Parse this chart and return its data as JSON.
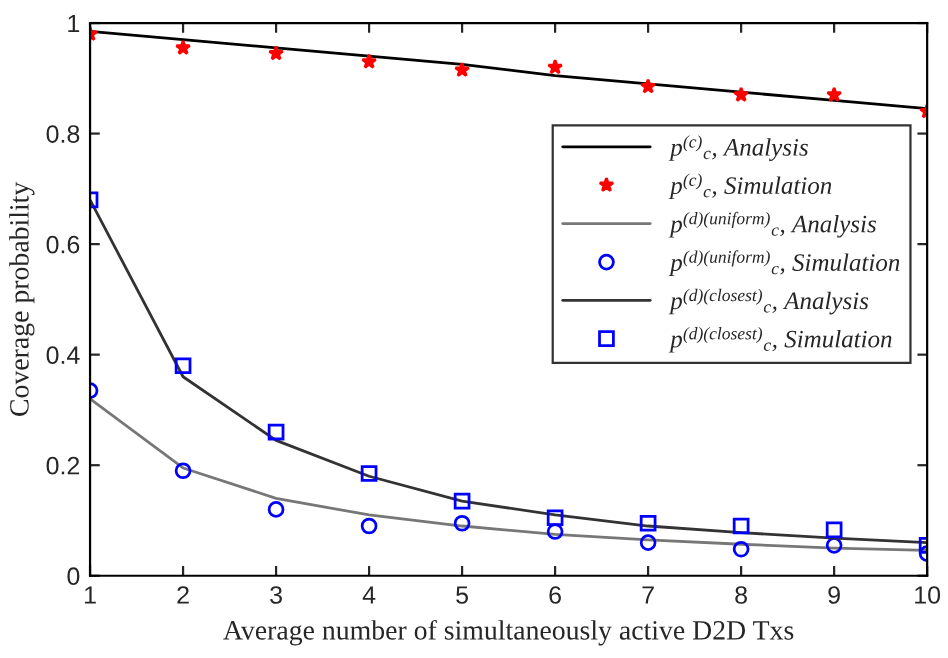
{
  "chart_data": {
    "type": "line",
    "xlabel": "Average number of simultaneously active D2D Txs",
    "ylabel": "Coverage probability",
    "x": [
      1,
      2,
      3,
      4,
      5,
      6,
      7,
      8,
      9,
      10
    ],
    "xlim": [
      1,
      10
    ],
    "xticks": [
      1,
      2,
      3,
      4,
      5,
      6,
      7,
      8,
      9,
      10
    ],
    "ylim": [
      0,
      1
    ],
    "yticks": [
      0,
      0.2,
      0.4,
      0.6,
      0.8,
      1
    ],
    "grid": false,
    "legend": "right",
    "series": [
      {
        "name": "p$^{(c)}$$_{c}$, Analysis",
        "color": "#000000",
        "values": [
          0.985,
          0.97,
          0.955,
          0.94,
          0.925,
          0.905,
          0.89,
          0.875,
          0.86,
          0.845
        ]
      },
      {
        "name": "p$^{(c)}$$_{c}$, Simulation",
        "type": "scatter",
        "color": "#ff0000",
        "marker": "star",
        "values": [
          0.98,
          0.955,
          0.945,
          0.93,
          0.915,
          0.92,
          0.885,
          0.87,
          0.87,
          0.84
        ]
      },
      {
        "name": "p$^{(d)(uniform)}$$_{c}$, Analysis",
        "color": "#777777",
        "values": [
          0.32,
          0.195,
          0.14,
          0.11,
          0.09,
          0.075,
          0.065,
          0.057,
          0.05,
          0.046
        ]
      },
      {
        "name": "p$^{(d)(uniform)}$$_{c}$, Simulation",
        "type": "scatter",
        "color": "#0000ff",
        "marker": "circle",
        "values": [
          0.335,
          0.19,
          0.12,
          0.09,
          0.095,
          0.08,
          0.06,
          0.048,
          0.055,
          0.04
        ]
      },
      {
        "name": "p$^{(d)(closest)}$$_{c}$, Analysis",
        "color": "#333333",
        "values": [
          0.68,
          0.36,
          0.245,
          0.18,
          0.135,
          0.11,
          0.09,
          0.078,
          0.068,
          0.06
        ]
      },
      {
        "name": "p$^{(d)(closest)}$$_{c}$, Simulation",
        "type": "scatter",
        "color": "#0000ff",
        "marker": "square",
        "values": [
          0.68,
          0.38,
          0.26,
          0.185,
          0.135,
          0.105,
          0.095,
          0.09,
          0.083,
          0.055
        ]
      }
    ]
  }
}
